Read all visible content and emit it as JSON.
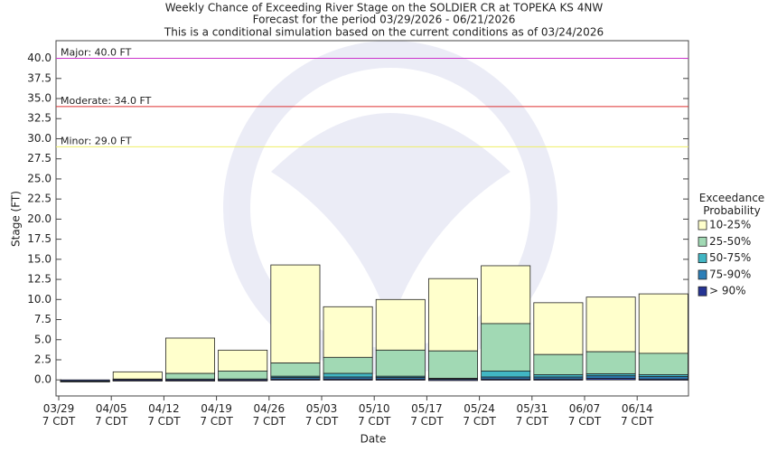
{
  "chart_data": {
    "type": "floating_bar",
    "title": "Weekly Chance of Exceeding River Stage on the SOLDIER CR at TOPEKA KS 4NW",
    "subtitle": "Forecast for the period 03/29/2026 - 06/21/2026",
    "note": "This is a conditional simulation based on the current conditions as of 03/24/2026",
    "x_label": "Date",
    "y_label": "Stage (FT)",
    "legend_title": "Exceedance Probability",
    "categories": [
      "03/29 7 CDT",
      "04/05 7 CDT",
      "04/12 7 CDT",
      "04/19 7 CDT",
      "04/26 7 CDT",
      "05/03 7 CDT",
      "05/10 7 CDT",
      "05/17 7 CDT",
      "05/24 7 CDT",
      "05/31 7 CDT",
      "06/07 7 CDT",
      "06/14 7 CDT"
    ],
    "series": [
      {
        "name": "10-25%",
        "color": "#ffffcc",
        "values": [
          -0.1,
          1.0,
          5.2,
          3.7,
          14.3,
          9.1,
          10.0,
          12.6,
          14.2,
          9.6,
          10.3,
          10.7
        ]
      },
      {
        "name": "25-50%",
        "color": "#a1d9b4",
        "values": [
          -0.1,
          0.1,
          0.8,
          1.1,
          2.1,
          2.8,
          3.7,
          3.6,
          7.0,
          3.15,
          3.5,
          3.3
        ]
      },
      {
        "name": "50-75%",
        "color": "#41b6c4",
        "values": [
          -0.1,
          0.05,
          0.1,
          0.1,
          0.45,
          0.8,
          0.45,
          0.2,
          1.1,
          0.65,
          0.75,
          0.65
        ]
      },
      {
        "name": "75-90%",
        "color": "#2c7fb8",
        "values": [
          -0.1,
          0.0,
          0.0,
          0.1,
          0.3,
          0.35,
          0.3,
          0.15,
          0.35,
          0.35,
          0.5,
          0.4
        ]
      },
      {
        "name": "> 90%",
        "color": "#253494",
        "values": [
          -0.1,
          -0.1,
          -0.1,
          -0.05,
          0.1,
          0.1,
          0.1,
          0.05,
          0.1,
          0.1,
          0.2,
          0.1
        ]
      }
    ],
    "thresholds": [
      {
        "label": "Major: 40.0 FT",
        "value": 40,
        "color": "#cc33cc"
      },
      {
        "label": "Moderate: 34.0 FT",
        "value": 34,
        "color": "#dd3333"
      },
      {
        "label": "Minor: 29.0 FT",
        "value": 29,
        "color": "#eeee66"
      }
    ],
    "ylim": [
      -2,
      42.2
    ],
    "yticks": [
      {
        "value": 0,
        "label": "0.0"
      },
      2.5,
      {
        "value": 5,
        "label": "5.0"
      },
      7.5,
      {
        "value": 10,
        "label": "10.0"
      },
      12.5,
      {
        "value": 15,
        "label": "15.0"
      },
      17.5,
      {
        "value": 20,
        "label": "20.0"
      },
      22.5,
      {
        "value": 25,
        "label": "25.0"
      },
      27.5,
      {
        "value": 30,
        "label": "30.0"
      },
      32.5,
      {
        "value": 35,
        "label": "35.0"
      },
      37.5,
      {
        "value": 40,
        "label": "40.0"
      }
    ]
  }
}
